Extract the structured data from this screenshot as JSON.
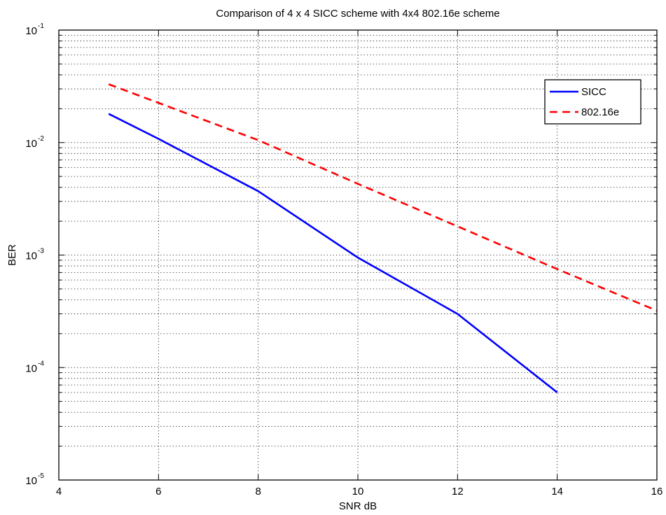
{
  "chart_data": {
    "type": "line",
    "title": "Comparison of 4 x 4 SICC scheme with 4x4 802.16e scheme",
    "xlabel": "SNR dB",
    "ylabel": "BER",
    "xlim": [
      4,
      16
    ],
    "ylim": [
      1e-05,
      0.1
    ],
    "yscale": "log",
    "grid": true,
    "legend_position": "top-right",
    "x_ticks": [
      "4",
      "6",
      "8",
      "10",
      "12",
      "14",
      "16"
    ],
    "y_ticks": [
      {
        "base": "10",
        "exp": "-5"
      },
      {
        "base": "10",
        "exp": "-4"
      },
      {
        "base": "10",
        "exp": "-3"
      },
      {
        "base": "10",
        "exp": "-2"
      },
      {
        "base": "10",
        "exp": "-1"
      }
    ],
    "series": [
      {
        "name": "SICC",
        "color": "#0000ff",
        "style": "solid",
        "x": [
          5,
          6,
          8,
          10,
          12,
          14
        ],
        "y": [
          0.018,
          0.0108,
          0.0037,
          0.00095,
          0.0003,
          6e-05
        ]
      },
      {
        "name": "802.16e",
        "color": "#ff0000",
        "style": "dashed",
        "x": [
          5,
          8,
          10,
          12,
          14,
          16
        ],
        "y": [
          0.033,
          0.0105,
          0.0043,
          0.0018,
          0.00075,
          0.00032
        ]
      }
    ]
  }
}
